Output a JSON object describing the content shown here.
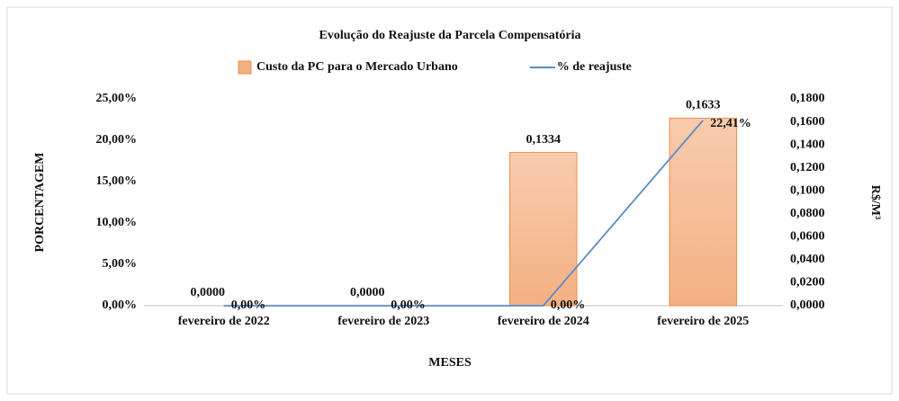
{
  "chart_data": {
    "type": "bar",
    "title": "Evolução do Reajuste da Parcela Compensatória",
    "xlabel": "MESES",
    "ylabel": "PORCENTAGEM",
    "y2label": "R$/M³",
    "categories": [
      "fevereiro de 2022",
      "fevereiro de 2023",
      "fevereiro de 2024",
      "fevereiro de 2025"
    ],
    "series": [
      {
        "name": "Custo da PC para o Mercado Urbano",
        "type": "bar",
        "axis": "y2",
        "color": "#f4b183",
        "values": [
          0,
          0,
          0.1334,
          0.1633
        ],
        "value_labels": [
          "0,0000",
          "0,0000",
          "0,1334",
          "0,1633"
        ]
      },
      {
        "name": "% de reajuste",
        "type": "line",
        "color": "#5b8ac6",
        "values": [
          0,
          0,
          0,
          22.41
        ],
        "value_labels": [
          "0,00%",
          "0,00%",
          "0,00%",
          "22,41%"
        ]
      }
    ],
    "ylim": [
      0,
      25
    ],
    "yticks": [
      {
        "value": 0,
        "label": "0,00%"
      },
      {
        "value": 5,
        "label": "5,00%"
      },
      {
        "value": 10,
        "label": "10,00%"
      },
      {
        "value": 15,
        "label": "15,00%"
      },
      {
        "value": 20,
        "label": "20,00%"
      },
      {
        "value": 25,
        "label": "25,00%"
      }
    ],
    "y2lim": [
      0,
      0.18
    ],
    "y2ticks": [
      {
        "value": 0,
        "label": "0,0000"
      },
      {
        "value": 0.02,
        "label": "0,0200"
      },
      {
        "value": 0.04,
        "label": "0,0400"
      },
      {
        "value": 0.06,
        "label": "0,0600"
      },
      {
        "value": 0.08,
        "label": "0,0800"
      },
      {
        "value": 0.1,
        "label": "0,1000"
      },
      {
        "value": 0.12,
        "label": "0,1200"
      },
      {
        "value": 0.14,
        "label": "0,1400"
      },
      {
        "value": 0.16,
        "label": "0,1600"
      },
      {
        "value": 0.18,
        "label": "0,1800"
      }
    ],
    "legend": "top"
  }
}
